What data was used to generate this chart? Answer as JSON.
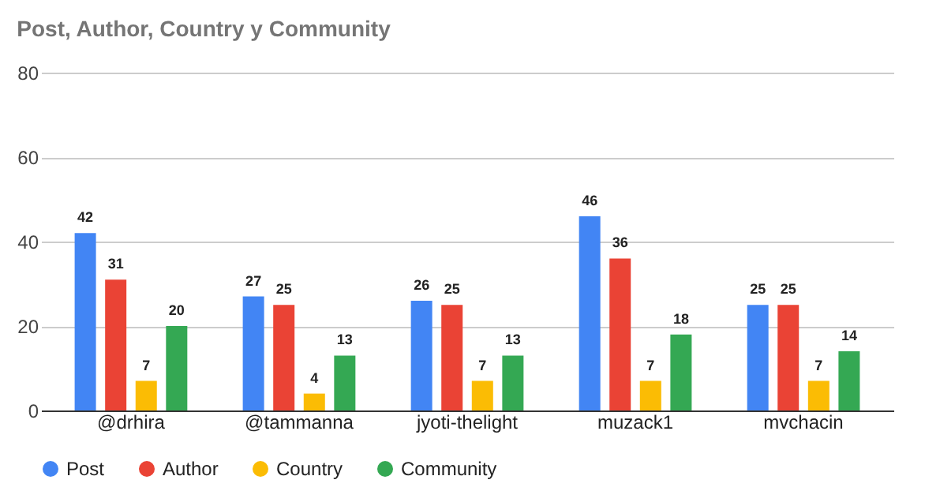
{
  "chart_data": {
    "type": "bar",
    "title": "Post, Author, Country y Community",
    "categories": [
      "@drhira",
      "@tammanna",
      "jyoti-thelight",
      "muzack1",
      "mvchacin"
    ],
    "series": [
      {
        "name": "Post",
        "color": "#4285f4",
        "values": [
          42,
          27,
          26,
          46,
          25
        ]
      },
      {
        "name": "Author",
        "color": "#ea4335",
        "values": [
          31,
          25,
          25,
          36,
          25
        ]
      },
      {
        "name": "Country",
        "color": "#fbbc04",
        "values": [
          7,
          4,
          7,
          7,
          7
        ]
      },
      {
        "name": "Community",
        "color": "#34a853",
        "values": [
          20,
          13,
          13,
          18,
          14
        ]
      }
    ],
    "ylim": [
      0,
      80
    ],
    "yticks": [
      0,
      20,
      40,
      60,
      80
    ],
    "grid": "y",
    "legend": "bottom",
    "data_labels": true
  }
}
